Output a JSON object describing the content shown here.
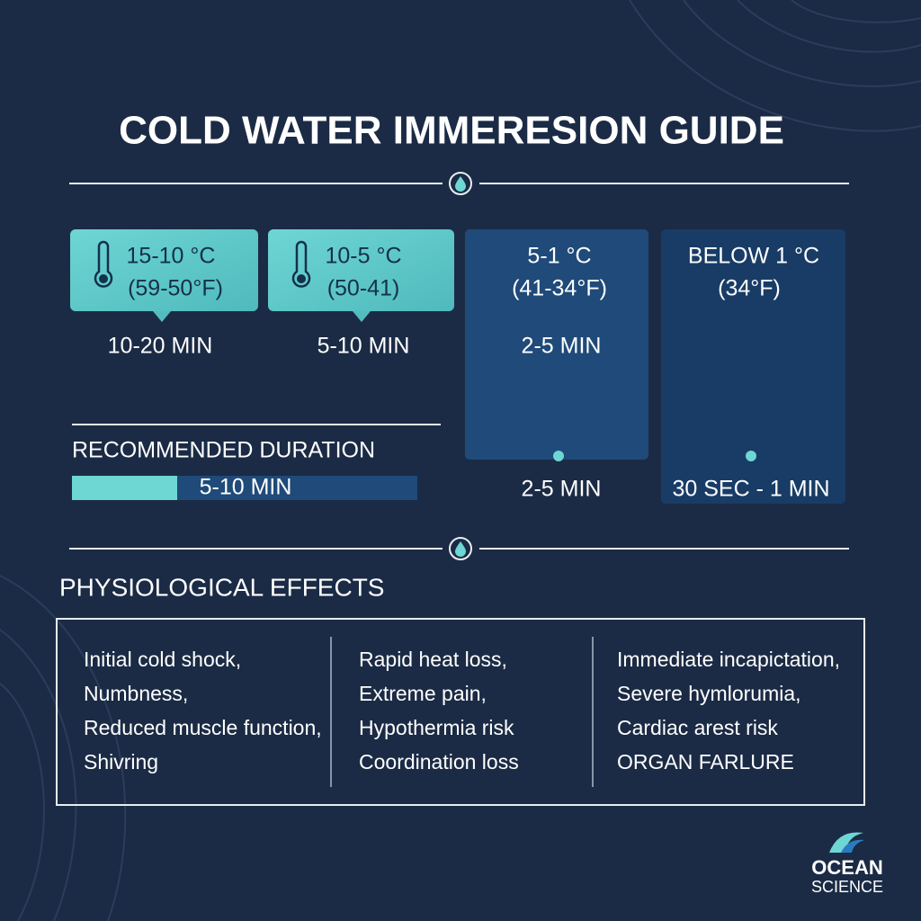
{
  "header": {
    "title": "COLD WATER IMMERESION GUIDE"
  },
  "ranges": [
    {
      "celsius": "15-10 °C",
      "fahrenheit": "(59-50°F)",
      "duration": "10-20 MIN"
    },
    {
      "celsius": "10-5 °C",
      "fahrenheit": "(50-41)",
      "duration": "5-10 MIN"
    },
    {
      "celsius": "5-1 °C",
      "fahrenheit": "(41-34°F)",
      "duration": "2-5 MIN",
      "card_duration": "2-5 MIN"
    },
    {
      "celsius": "BELOW 1 °C",
      "fahrenheit": "(34°F)",
      "card_duration": "30 SEC - 1 MIN"
    }
  ],
  "recommended": {
    "label": "RECOMMENDED DURATION",
    "value": "5-10 MIN"
  },
  "effects": {
    "title": "PHYSIOLOGICAL EFFECTS",
    "columns": [
      [
        "Initial cold shock,",
        "Numbness,",
        "Reduced muscle function,",
        "Shivring"
      ],
      [
        "Rapid heat loss,",
        "Extreme pain,",
        "Hypothermia risk",
        "Coordination loss"
      ],
      [
        "Immediate incapictation,",
        "Severe hymlorumia,",
        "Cardiac arest risk",
        "ORGAN FARLURE"
      ]
    ]
  },
  "logo": {
    "line1": "OCEAN",
    "line2": "SCIENCE"
  }
}
